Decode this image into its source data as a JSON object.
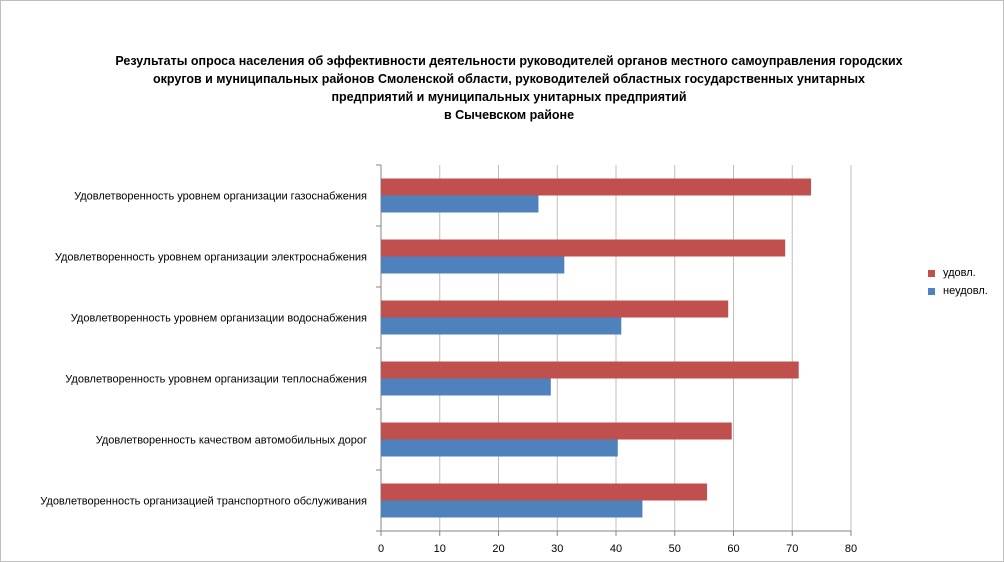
{
  "chart_data": {
    "type": "bar",
    "orientation": "horizontal",
    "title": [
      "Результаты опроса населения об эффективности деятельности руководителей органов местного самоуправления городских",
      "округов и муниципальных районов Смоленской области, руководителей областных государственных унитарных",
      "предприятий и муниципальных унитарных предприятий",
      "в Сычевском районе"
    ],
    "categories": [
      "Удовлетворенность уровнем организации газоснабжения",
      "Удовлетворенность уровнем организации электроснабжения",
      "Удовлетворенность уровнем организации водоснабжения",
      "Удовлетворенность уровнем организации теплоснабжения",
      "Удовлетворенность качеством автомобильных дорог",
      "Удовлетворенность организацией транспортного обслуживания"
    ],
    "series": [
      {
        "name": "удовл.",
        "color": "#c0504d",
        "values": [
          73.2,
          68.8,
          59.1,
          71.1,
          59.7,
          55.5
        ]
      },
      {
        "name": "неудовл.",
        "color": "#4f81bd",
        "values": [
          26.8,
          31.2,
          40.9,
          28.9,
          40.3,
          44.5
        ]
      }
    ],
    "xlim": [
      0,
      80
    ],
    "xticks": [
      0,
      10,
      20,
      30,
      40,
      50,
      60,
      70,
      80
    ],
    "grid": true,
    "legend": "right"
  }
}
